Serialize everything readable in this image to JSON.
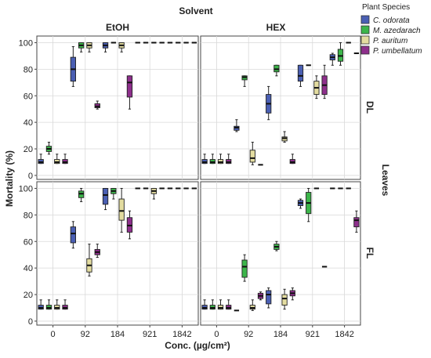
{
  "chart_data": {
    "type": "box",
    "title": "Solvent",
    "xlabel": "Conc. (µg/cm²)",
    "ylabel": "Mortality (%)",
    "row_strip_title": "Leaves",
    "categories": [
      "0",
      "92",
      "184",
      "921",
      "1842"
    ],
    "yticks": [
      0,
      20,
      40,
      60,
      80,
      100
    ],
    "ylim": [
      -3,
      105
    ],
    "grid": true,
    "legend": {
      "title": "Plant Species",
      "placement": "top-right",
      "entries": [
        {
          "name": "C. odorata",
          "color": "#4a5fb3"
        },
        {
          "name": "M. azedarach",
          "color": "#3cb54a"
        },
        {
          "name": "P. auritum",
          "color": "#e3dca0"
        },
        {
          "name": "P. umbellatum",
          "color": "#8e2f8c"
        }
      ]
    },
    "panels": [
      {
        "column": "EtOH",
        "row": "DL",
        "boxes": [
          [
            [
              9,
              9,
              10,
              12,
              16
            ],
            [
              16,
              18,
              20,
              22,
              25
            ],
            [
              9,
              9,
              10,
              12,
              16
            ],
            [
              9,
              9,
              10,
              12,
              16
            ]
          ],
          [
            [
              67,
              71,
              80,
              89,
              97
            ],
            [
              93,
              96,
              98,
              100,
              100
            ],
            [
              93,
              96,
              98,
              100,
              100
            ],
            [
              50,
              51,
              52,
              54,
              56
            ]
          ],
          [
            [
              93,
              96,
              98,
              100,
              100
            ],
            [
              100,
              100,
              100,
              100,
              100
            ],
            [
              93,
              96,
              98,
              100,
              100
            ],
            [
              50,
              59,
              70,
              75,
              75
            ]
          ],
          [
            [
              100,
              100,
              100,
              100,
              100
            ],
            [
              100,
              100,
              100,
              100,
              100
            ],
            [
              100,
              100,
              100,
              100,
              100
            ],
            [
              100,
              100,
              100,
              100,
              100
            ]
          ],
          [
            [
              100,
              100,
              100,
              100,
              100
            ],
            [
              100,
              100,
              100,
              100,
              100
            ],
            [
              100,
              100,
              100,
              100,
              100
            ],
            [
              100,
              100,
              100,
              100,
              100
            ]
          ]
        ]
      },
      {
        "column": "HEX",
        "row": "DL",
        "boxes": [
          [
            [
              9,
              9,
              10,
              12,
              16
            ],
            [
              9,
              9,
              10,
              12,
              16
            ],
            [
              9,
              9,
              10,
              12,
              16
            ],
            [
              9,
              9,
              10,
              12,
              16
            ]
          ],
          [
            [
              33,
              34,
              36,
              37,
              42
            ],
            [
              67,
              72,
              74,
              75,
              75
            ],
            [
              8,
              10,
              13,
              19,
              25
            ],
            [
              8,
              8,
              8,
              8,
              8
            ]
          ],
          [
            [
              42,
              47,
              54,
              61,
              67
            ],
            [
              75,
              78,
              80,
              83,
              83
            ],
            [
              25,
              26,
              28,
              29,
              33
            ],
            [
              9,
              9,
              10,
              12,
              16
            ]
          ],
          [
            [
              67,
              71,
              75,
              83,
              83
            ],
            [
              83,
              83,
              83,
              83,
              83
            ],
            [
              58,
              61,
              66,
              71,
              75
            ],
            [
              58,
              61,
              68,
              75,
              83
            ]
          ],
          [
            [
              83,
              87,
              89,
              91,
              92
            ],
            [
              83,
              86,
              90,
              95,
              100
            ],
            [
              100,
              100,
              100,
              100,
              100
            ],
            [
              92,
              92,
              92,
              92,
              92
            ]
          ]
        ]
      },
      {
        "column": "EtOH",
        "row": "FL",
        "boxes": [
          [
            [
              9,
              9,
              10,
              12,
              16
            ],
            [
              9,
              9,
              10,
              12,
              16
            ],
            [
              9,
              9,
              10,
              12,
              16
            ],
            [
              9,
              9,
              10,
              12,
              16
            ]
          ],
          [
            [
              55,
              59,
              66,
              71,
              75
            ],
            [
              90,
              93,
              96,
              98,
              100
            ],
            [
              34,
              37,
              42,
              47,
              58
            ],
            [
              48,
              50,
              52,
              54,
              58
            ]
          ],
          [
            [
              84,
              88,
              95,
              100,
              100
            ],
            [
              92,
              96,
              98,
              100,
              100
            ],
            [
              67,
              76,
              83,
              92,
              100
            ],
            [
              62,
              67,
              72,
              78,
              83
            ]
          ],
          [
            [
              100,
              100,
              100,
              100,
              100
            ],
            [
              100,
              100,
              100,
              100,
              100
            ],
            [
              92,
              96,
              98,
              100,
              100
            ],
            [
              100,
              100,
              100,
              100,
              100
            ]
          ],
          [
            [
              100,
              100,
              100,
              100,
              100
            ],
            [
              100,
              100,
              100,
              100,
              100
            ],
            [
              100,
              100,
              100,
              100,
              100
            ],
            [
              100,
              100,
              100,
              100,
              100
            ]
          ]
        ]
      },
      {
        "column": "HEX",
        "row": "FL",
        "boxes": [
          [
            [
              9,
              9,
              10,
              12,
              16
            ],
            [
              9,
              9,
              10,
              12,
              16
            ],
            [
              9,
              9,
              10,
              12,
              16
            ],
            [
              9,
              9,
              10,
              12,
              16
            ]
          ],
          [
            [
              8,
              8,
              8,
              8,
              8
            ],
            [
              30,
              33,
              41,
              46,
              50
            ],
            [
              8,
              9,
              10,
              12,
              16
            ],
            [
              16,
              17,
              19,
              21,
              22
            ]
          ],
          [
            [
              10,
              13,
              20,
              23,
              25
            ],
            [
              53,
              54,
              56,
              58,
              60
            ],
            [
              9,
              12,
              17,
              20,
              24
            ],
            [
              16,
              19,
              21,
              23,
              25
            ]
          ],
          [
            [
              85,
              87,
              89,
              91,
              92
            ],
            [
              75,
              81,
              89,
              97,
              100
            ],
            [
              100,
              100,
              100,
              100,
              100
            ],
            [
              41,
              41,
              41,
              41,
              41
            ]
          ],
          [
            [
              100,
              100,
              100,
              100,
              100
            ],
            [
              100,
              100,
              100,
              100,
              100
            ],
            [
              100,
              100,
              100,
              100,
              100
            ],
            [
              67,
              71,
              76,
              78,
              83
            ]
          ]
        ]
      }
    ]
  }
}
